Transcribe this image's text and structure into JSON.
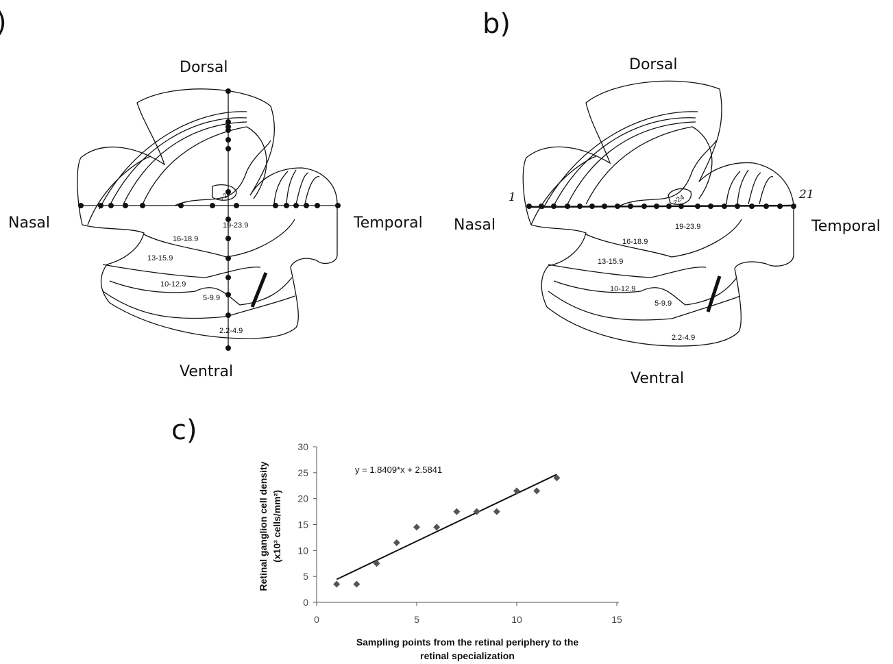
{
  "panels": {
    "a": {
      "letter": ")",
      "dorsal": "Dorsal",
      "ventral": "Ventral",
      "nasal": "Nasal",
      "temporal": "Temporal",
      "zones": [
        "19-23.9",
        "16-18.9",
        "13-15.9",
        "10-12.9",
        "5-9.9",
        "2.2-4.9"
      ],
      "peak": ">24"
    },
    "b": {
      "letter": "b)",
      "dorsal": "Dorsal",
      "ventral": "Ventral",
      "nasal": "Nasal",
      "temporal": "Temporal",
      "zones": [
        "19-23.9",
        "16-18.9",
        "13-15.9",
        "10-12.9",
        "5-9.9",
        "2.2-4.9"
      ],
      "peak": ">24",
      "start_label": "1",
      "end_label": "21"
    },
    "c": {
      "letter": "c)"
    }
  },
  "chart_data": {
    "type": "scatter",
    "equation": "y = 1.8409*x + 2.5841",
    "ylabel_line1": "Retinal ganglion cell density",
    "ylabel_line2": "(x10³ cells/mm²)",
    "xlabel_line1": "Sampling points from the retinal periphery to the",
    "xlabel_line2": "retinal specialization",
    "xlim": [
      0,
      15
    ],
    "ylim": [
      0,
      30
    ],
    "xticks": [
      0,
      5,
      10,
      15
    ],
    "yticks": [
      0,
      5,
      10,
      15,
      20,
      25,
      30
    ],
    "x": [
      1,
      2,
      3,
      4,
      5,
      6,
      7,
      8,
      9,
      10,
      11,
      12
    ],
    "y": [
      3.5,
      3.5,
      7.5,
      11.5,
      14.5,
      14.5,
      17.5,
      17.5,
      17.5,
      21.5,
      21.5,
      24
    ],
    "trendline": {
      "slope": 1.8409,
      "intercept": 2.5841,
      "x_range": [
        1,
        12
      ]
    },
    "point_color": "#555555"
  }
}
